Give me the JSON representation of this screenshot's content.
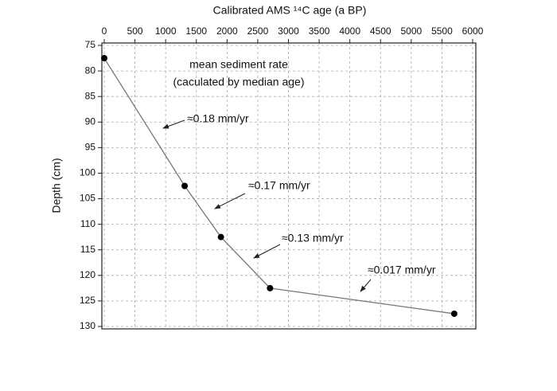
{
  "chart_data": {
    "type": "line",
    "x_label": "Calibrated AMS ¹⁴C  age (a BP)",
    "y_label": "Depth (cm)",
    "x": [
      0,
      1310,
      1900,
      2700,
      5700
    ],
    "values": [
      77.5,
      102.5,
      112.5,
      122.5,
      127.5
    ],
    "color": "#777777",
    "marker_color": "#000000",
    "xlim": [
      0,
      6000
    ],
    "xticks": [
      0,
      500,
      1000,
      1500,
      2000,
      2500,
      3000,
      3500,
      4000,
      4500,
      5000,
      5500,
      6000
    ],
    "ylim": [
      75,
      130
    ],
    "yticks": [
      75,
      80,
      85,
      90,
      95,
      100,
      105,
      110,
      115,
      120,
      125,
      130
    ],
    "y_inverted": true,
    "x_axis_position": "top",
    "grid": true,
    "annotations": [
      "mean sediment rate",
      "(caculated by median age)",
      "≈0.18 mm/yr",
      "≈0.17 mm/yr",
      "≈0.13 mm/yr",
      "≈0.017 mm/yr"
    ]
  }
}
